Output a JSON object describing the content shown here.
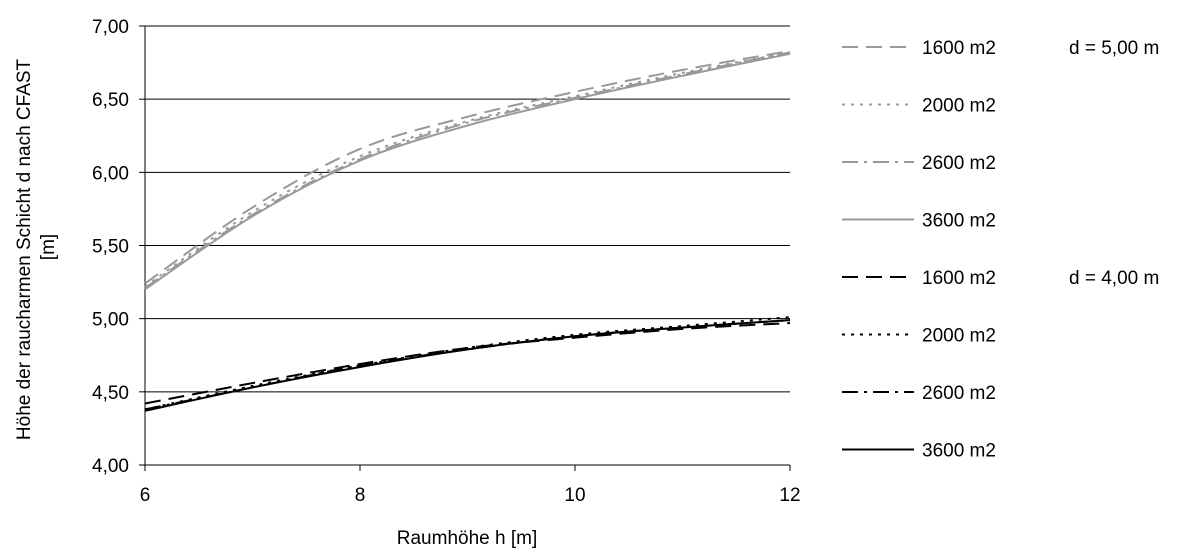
{
  "chart_data": {
    "type": "line",
    "xlabel": "Raumhöhe h [m]",
    "ylabel_lines": [
      "Höhe der raucharmen Schicht d nach CFAST",
      "[m]"
    ],
    "xlim": [
      6,
      12
    ],
    "ylim": [
      4.0,
      7.0
    ],
    "x_ticks": [
      6,
      8,
      10,
      12
    ],
    "x_tick_labels": [
      "6",
      "8",
      "10",
      "12"
    ],
    "y_ticks": [
      4.0,
      4.5,
      5.0,
      5.5,
      6.0,
      6.5,
      7.0
    ],
    "y_tick_labels": [
      "4,00",
      "4,50",
      "5,00",
      "5,50",
      "6,00",
      "6,50",
      "7,00"
    ],
    "grid": "horizontal",
    "legend_position": "right",
    "group_labels": [
      {
        "text": "d = 5,00 m",
        "series_index": 0
      },
      {
        "text": "d = 4,00 m",
        "series_index": 4
      }
    ],
    "series": [
      {
        "name": "1600 m2",
        "color": "#999999",
        "dash": "dash",
        "x": [
          6,
          7,
          8,
          9,
          10,
          11,
          12
        ],
        "y": [
          5.24,
          5.76,
          6.16,
          6.38,
          6.55,
          6.7,
          6.83
        ]
      },
      {
        "name": "2000 m2",
        "color": "#999999",
        "dash": "dot",
        "x": [
          6,
          7,
          8,
          9,
          10,
          11,
          12
        ],
        "y": [
          5.22,
          5.73,
          6.11,
          6.35,
          6.52,
          6.68,
          6.82
        ]
      },
      {
        "name": "2600 m2",
        "color": "#999999",
        "dash": "dashdot",
        "x": [
          6,
          7,
          8,
          9,
          10,
          11,
          12
        ],
        "y": [
          5.21,
          5.71,
          6.09,
          6.34,
          6.51,
          6.67,
          6.82
        ]
      },
      {
        "name": "3600 m2",
        "color": "#999999",
        "dash": "solid",
        "x": [
          6,
          7,
          8,
          9,
          10,
          11,
          12
        ],
        "y": [
          5.2,
          5.7,
          6.08,
          6.32,
          6.5,
          6.66,
          6.81
        ]
      },
      {
        "name": "1600 m2",
        "color": "#000000",
        "dash": "dash",
        "x": [
          6,
          7,
          8,
          9,
          10,
          11,
          12
        ],
        "y": [
          4.42,
          4.56,
          4.69,
          4.8,
          4.87,
          4.93,
          4.97
        ]
      },
      {
        "name": "2000 m2",
        "color": "#000000",
        "dash": "dot",
        "x": [
          6,
          7,
          8,
          9,
          10,
          11,
          12
        ],
        "y": [
          4.38,
          4.54,
          4.68,
          4.8,
          4.89,
          4.95,
          5.01
        ]
      },
      {
        "name": "2600 m2",
        "color": "#000000",
        "dash": "dashdot",
        "x": [
          6,
          7,
          8,
          9,
          10,
          11,
          12
        ],
        "y": [
          4.38,
          4.53,
          4.68,
          4.79,
          4.88,
          4.94,
          4.99
        ]
      },
      {
        "name": "3600 m2",
        "color": "#000000",
        "dash": "solid",
        "x": [
          6,
          7,
          8,
          9,
          10,
          11,
          12
        ],
        "y": [
          4.37,
          4.53,
          4.67,
          4.79,
          4.88,
          4.94,
          4.99
        ]
      }
    ]
  }
}
